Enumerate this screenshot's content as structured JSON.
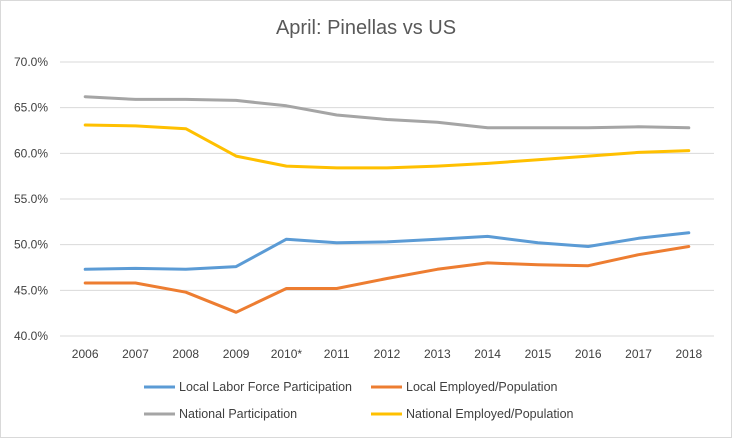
{
  "chart_data": {
    "type": "line",
    "title": "April: Pinellas vs US",
    "xlabel": "",
    "ylabel": "",
    "categories": [
      "2006",
      "2007",
      "2008",
      "2009",
      "2010*",
      "2011",
      "2012",
      "2013",
      "2014",
      "2015",
      "2016",
      "2017",
      "2018"
    ],
    "ylim": [
      40,
      70
    ],
    "yticks": [
      40,
      45,
      50,
      55,
      60,
      65,
      70
    ],
    "ytick_labels": [
      "40.0%",
      "45.0%",
      "50.0%",
      "55.0%",
      "60.0%",
      "65.0%",
      "70.0%"
    ],
    "grid": true,
    "legend_position": "bottom",
    "series": [
      {
        "name": "Local Labor Force Participation",
        "color": "#5b9bd5",
        "values": [
          47.3,
          47.4,
          47.3,
          47.6,
          50.6,
          50.2,
          50.3,
          50.6,
          50.9,
          50.2,
          49.8,
          50.7,
          51.3
        ]
      },
      {
        "name": "Local Employed/Population",
        "color": "#ed7d31",
        "values": [
          45.8,
          45.8,
          44.8,
          42.6,
          45.2,
          45.2,
          46.3,
          47.3,
          48.0,
          47.8,
          47.7,
          48.9,
          49.8
        ]
      },
      {
        "name": "National Participation",
        "color": "#a5a5a5",
        "values": [
          66.2,
          65.9,
          65.9,
          65.8,
          65.2,
          64.2,
          63.7,
          63.4,
          62.8,
          62.8,
          62.8,
          62.9,
          62.8
        ]
      },
      {
        "name": "National Employed/Population",
        "color": "#ffc000",
        "values": [
          63.1,
          63.0,
          62.7,
          59.7,
          58.6,
          58.4,
          58.4,
          58.6,
          58.9,
          59.3,
          59.7,
          60.1,
          60.3
        ]
      }
    ]
  }
}
